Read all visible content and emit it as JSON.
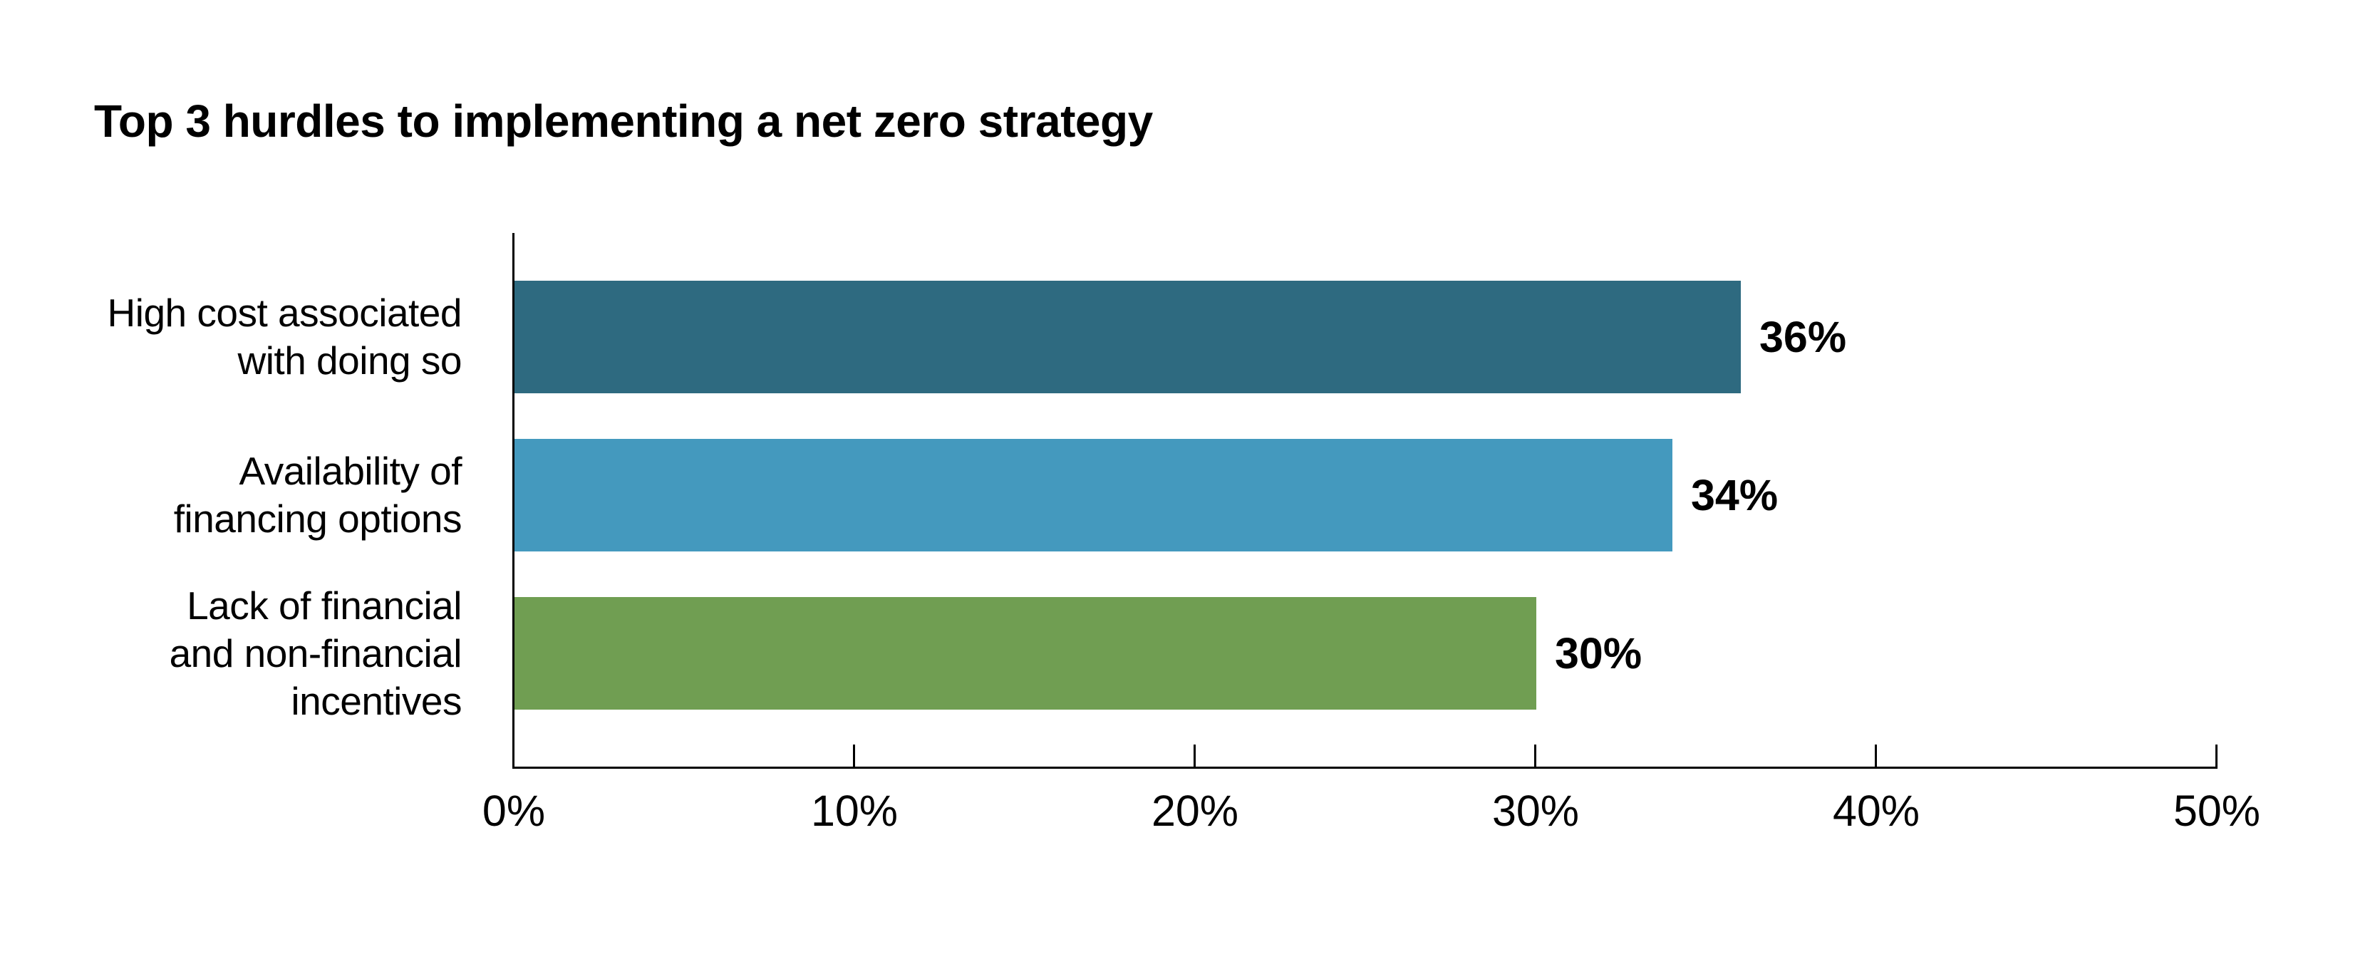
{
  "chart_data": {
    "type": "bar",
    "orientation": "horizontal",
    "title": "Top 3 hurdles to implementing a net zero strategy",
    "categories": [
      "High cost associated with doing so",
      "Availability of financing options",
      "Lack of financial and non-financial incentives"
    ],
    "category_lines": [
      [
        "High cost associated",
        "with doing so"
      ],
      [
        "Availability of",
        "financing options"
      ],
      [
        "Lack of financial",
        "and non-financial",
        "incentives"
      ]
    ],
    "values": [
      36,
      34,
      30
    ],
    "value_labels": [
      "36%",
      "34%",
      "30%"
    ],
    "bar_colors": [
      "#2E6A80",
      "#4499BE",
      "#709E52"
    ],
    "xlabel": "",
    "ylabel": "",
    "xlim": [
      0,
      50
    ],
    "x_ticks": [
      0,
      10,
      20,
      30,
      40,
      50
    ],
    "x_tick_labels": [
      "0%",
      "10%",
      "20%",
      "30%",
      "40%",
      "50%"
    ],
    "grid": false,
    "legend": false,
    "axis_color": "#000000",
    "text_color": "#000000",
    "background_color": "#FFFFFF"
  }
}
